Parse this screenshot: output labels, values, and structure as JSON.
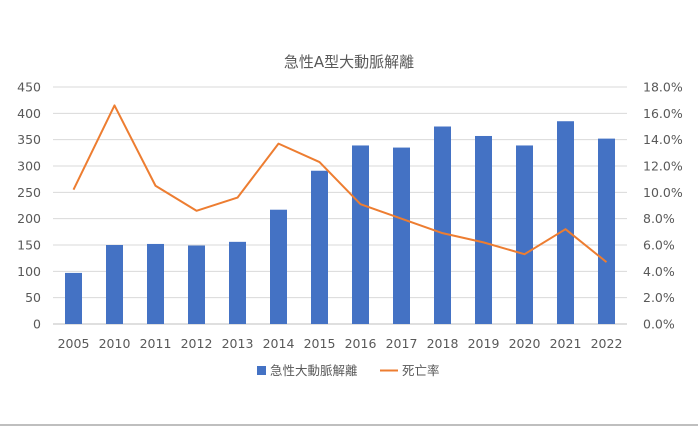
{
  "chart_data": {
    "type": "bar+line",
    "title": "急性A型大動脈解離",
    "categories": [
      "2005",
      "2010",
      "2011",
      "2012",
      "2013",
      "2014",
      "2015",
      "2016",
      "2017",
      "2018",
      "2019",
      "2020",
      "2021",
      "2022"
    ],
    "series": [
      {
        "name": "急性大動脈解離",
        "type": "bar",
        "axis": "left",
        "color": "#4472C4",
        "values": [
          97,
          150,
          152,
          149,
          156,
          217,
          291,
          339,
          335,
          375,
          357,
          339,
          385,
          352
        ]
      },
      {
        "name": "死亡率",
        "type": "line",
        "axis": "right",
        "color": "#ED7D31",
        "values": [
          10.2,
          16.6,
          10.5,
          8.6,
          9.6,
          13.7,
          12.3,
          9.1,
          8.0,
          6.9,
          6.2,
          5.3,
          7.2,
          4.7
        ]
      }
    ],
    "left_axis": {
      "min": 0,
      "max": 450,
      "step": 50,
      "ticks": [
        "0",
        "50",
        "100",
        "150",
        "200",
        "250",
        "300",
        "350",
        "400",
        "450"
      ]
    },
    "right_axis": {
      "min": 0,
      "max": 18,
      "step": 2,
      "ticks": [
        "0.0%",
        "2.0%",
        "4.0%",
        "6.0%",
        "8.0%",
        "10.0%",
        "12.0%",
        "14.0%",
        "16.0%",
        "18.0%"
      ]
    },
    "grid": true,
    "legend_position": "bottom"
  }
}
